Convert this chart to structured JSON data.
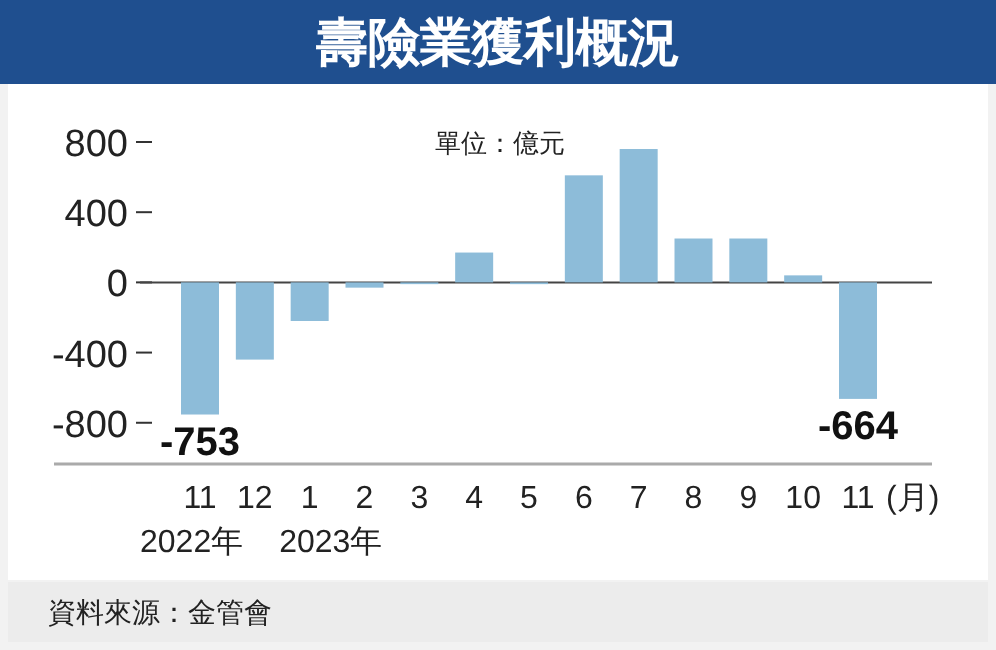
{
  "chart_data": {
    "type": "bar",
    "title": "壽險業獲利概況",
    "categories": [
      "11\n2022年",
      "12",
      "1\n2023年",
      "2",
      "3",
      "4",
      "5",
      "6",
      "7",
      "8",
      "9",
      "10",
      "11"
    ],
    "xlabel": "(月)",
    "values": [
      -753,
      -440,
      -220,
      -30,
      -10,
      170,
      -10,
      610,
      760,
      250,
      250,
      40,
      -664
    ],
    "value_labels": [
      "-753",
      null,
      null,
      null,
      null,
      null,
      null,
      null,
      null,
      null,
      null,
      null,
      "-664"
    ],
    "color": "#8dbcd9",
    "ylim": [
      -1035,
      800
    ],
    "yticks": [
      -800,
      -400,
      0,
      400,
      800
    ],
    "annotations": [
      "單位：億元",
      "資料來源：金管會"
    ]
  }
}
